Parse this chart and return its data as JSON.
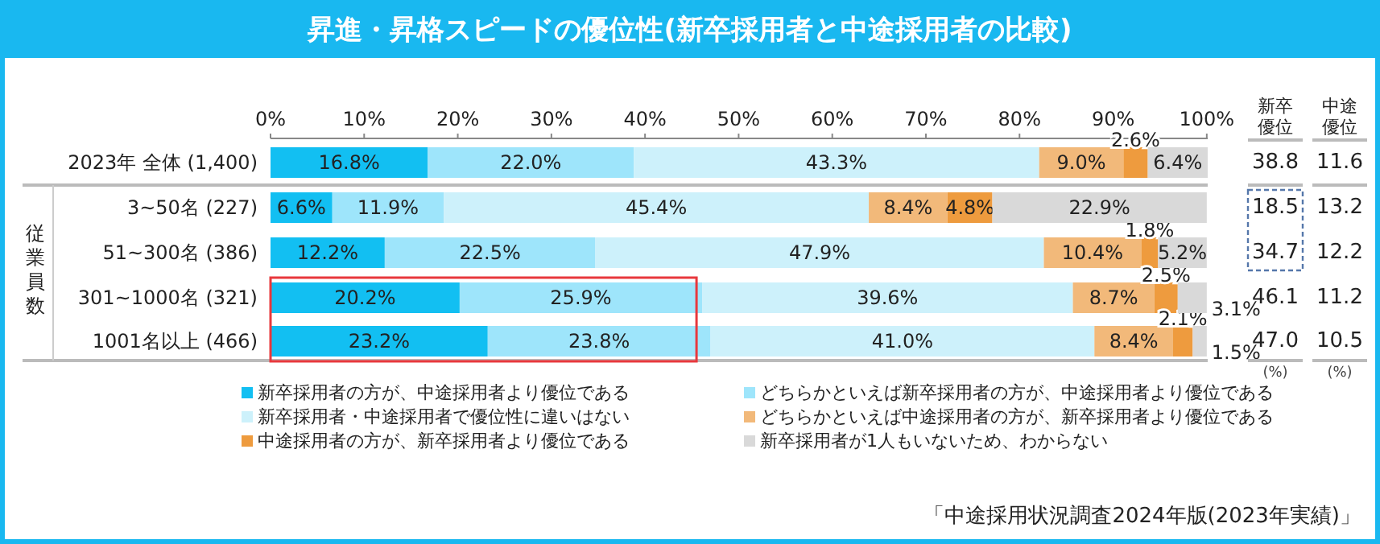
{
  "chart_data": {
    "type": "bar",
    "orientation": "horizontal",
    "stacked": true,
    "title": "昇進・昇格スピードの優位性(新卒採用者と中途採用者の比較)",
    "categories": [
      "2023年 全体 (1,400)",
      "3~50名 (227)",
      "51~300名 (386)",
      "301~1000名 (321)",
      "1001名以上 (466)"
    ],
    "series": [
      {
        "name": "新卒採用者の方が、中途採用者より優位である",
        "color": "#12bff2",
        "values": [
          16.8,
          6.6,
          12.2,
          20.2,
          23.2
        ],
        "value_labels": [
          "16.8%",
          "6.6%",
          "12.2%",
          "20.2%",
          "23.2%"
        ]
      },
      {
        "name": "どちらかといえば新卒採用者の方が、中途採用者より優位である",
        "color": "#9ee5fb",
        "values": [
          22.0,
          11.9,
          22.5,
          25.9,
          23.8
        ],
        "value_labels": [
          "22.0%",
          "11.9%",
          "22.5%",
          "25.9%",
          "23.8%"
        ]
      },
      {
        "name": "新卒採用者・中途採用者で優位性に違いはない",
        "color": "#cdf1fb",
        "values": [
          43.3,
          45.4,
          47.9,
          39.6,
          41.0
        ],
        "value_labels": [
          "43.3%",
          "45.4%",
          "47.9%",
          "39.6%",
          "41.0%"
        ]
      },
      {
        "name": "どちらかといえば中途採用者の方が、新卒採用者より優位である",
        "color": "#f2b97a",
        "values": [
          9.0,
          8.4,
          10.4,
          8.7,
          8.4
        ],
        "value_labels": [
          "9.0%",
          "8.4%",
          "10.4%",
          "8.7%",
          "8.4%"
        ]
      },
      {
        "name": "中途採用者の方が、新卒採用者より優位である",
        "color": "#ee9b3e",
        "values": [
          2.6,
          4.8,
          1.8,
          2.5,
          2.1
        ],
        "value_labels": [
          "2.6%",
          "4.8%",
          "1.8%",
          "2.5%",
          "2.1%"
        ]
      },
      {
        "name": "新卒採用者が1人もいないため、わからない",
        "color": "#d9d9d9",
        "values": [
          6.4,
          22.9,
          5.2,
          3.1,
          1.5
        ],
        "value_labels": [
          "6.4%",
          "22.9%",
          "5.2%",
          "3.1%",
          "1.5%"
        ]
      }
    ],
    "xlim": [
      0,
      100.1
    ],
    "xticks": [
      {
        "value": 0,
        "label": "0%"
      },
      {
        "value": 10,
        "label": "10%"
      },
      {
        "value": 20,
        "label": "20%"
      },
      {
        "value": 30,
        "label": "30%"
      },
      {
        "value": 40,
        "label": "40%"
      },
      {
        "value": 50,
        "label": "50%"
      },
      {
        "value": 60,
        "label": "60%"
      },
      {
        "value": 70,
        "label": "70%"
      },
      {
        "value": 80,
        "label": "80%"
      },
      {
        "value": 90,
        "label": "90%"
      },
      {
        "value": 100,
        "label": "100%"
      }
    ],
    "legend": "bottom",
    "grid": false,
    "annotations": [
      "従業員数",
      "新卒優位",
      "中途優位",
      "(%)",
      "(%)",
      "「中途採用状況調査2024年版(2023年実績)」",
      "38.8",
      "18.5",
      "34.7",
      "46.1",
      "47.0",
      "11.6",
      "13.2",
      "12.2",
      "11.2",
      "10.5"
    ]
  }
}
